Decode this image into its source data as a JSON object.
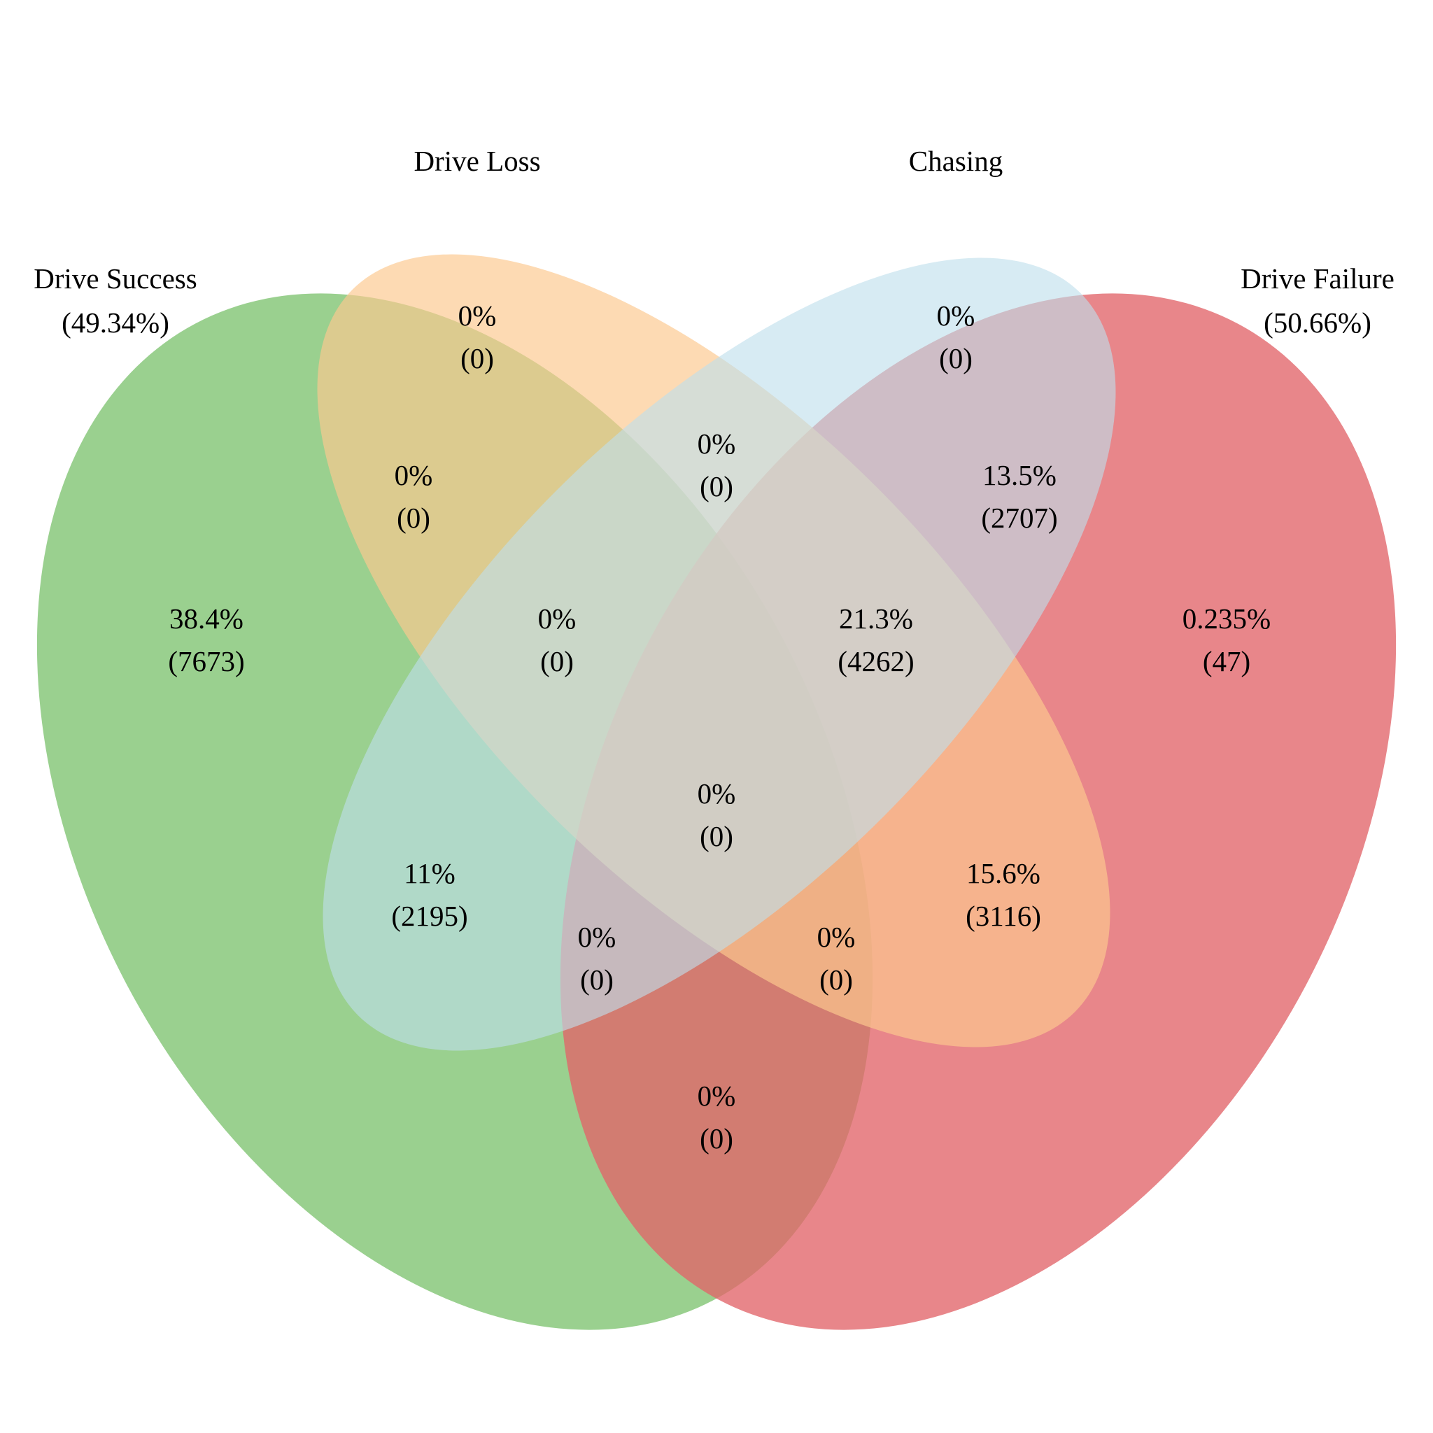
{
  "diagram": {
    "type": "venn-4",
    "sets": [
      {
        "id": "drive_success",
        "name": "Drive Success",
        "share": "(49.34%)",
        "color": "#7dc36f"
      },
      {
        "id": "drive_loss",
        "name": "Drive Loss",
        "share": "",
        "color": "#fcc88f"
      },
      {
        "id": "chasing",
        "name": "Chasing",
        "share": "",
        "color": "#bfdfeb"
      },
      {
        "id": "drive_failure",
        "name": "Drive Failure",
        "share": "(50.66%)",
        "color": "#e26469"
      }
    ],
    "regions": [
      {
        "id": "loss-only",
        "sets": [
          "drive_loss"
        ],
        "percent": "0%",
        "count": "(0)"
      },
      {
        "id": "chasing-only",
        "sets": [
          "chasing"
        ],
        "percent": "0%",
        "count": "(0)"
      },
      {
        "id": "loss-chasing",
        "sets": [
          "drive_loss",
          "chasing"
        ],
        "percent": "0%",
        "count": "(0)"
      },
      {
        "id": "success-loss",
        "sets": [
          "drive_success",
          "drive_loss"
        ],
        "percent": "0%",
        "count": "(0)"
      },
      {
        "id": "chasing-failure",
        "sets": [
          "chasing",
          "drive_failure"
        ],
        "percent": "13.5%",
        "count": "(2707)"
      },
      {
        "id": "success-only",
        "sets": [
          "drive_success"
        ],
        "percent": "38.4%",
        "count": "(7673)"
      },
      {
        "id": "success-loss-chasing",
        "sets": [
          "drive_success",
          "drive_loss",
          "chasing"
        ],
        "percent": "0%",
        "count": "(0)"
      },
      {
        "id": "loss-chasing-failure",
        "sets": [
          "drive_loss",
          "chasing",
          "drive_failure"
        ],
        "percent": "21.3%",
        "count": "(4262)"
      },
      {
        "id": "failure-only",
        "sets": [
          "drive_failure"
        ],
        "percent": "0.235%",
        "count": "(47)"
      },
      {
        "id": "all-four",
        "sets": [
          "drive_success",
          "drive_loss",
          "chasing",
          "drive_failure"
        ],
        "percent": "0%",
        "count": "(0)"
      },
      {
        "id": "success-chasing",
        "sets": [
          "drive_success",
          "chasing"
        ],
        "percent": "11%",
        "count": "(2195)"
      },
      {
        "id": "loss-failure",
        "sets": [
          "drive_loss",
          "drive_failure"
        ],
        "percent": "15.6%",
        "count": "(3116)"
      },
      {
        "id": "success-chasing-failure",
        "sets": [
          "drive_success",
          "chasing",
          "drive_failure"
        ],
        "percent": "0%",
        "count": "(0)"
      },
      {
        "id": "success-loss-failure",
        "sets": [
          "drive_success",
          "drive_loss",
          "drive_failure"
        ],
        "percent": "0%",
        "count": "(0)"
      },
      {
        "id": "success-failure",
        "sets": [
          "drive_success",
          "drive_failure"
        ],
        "percent": "0%",
        "count": "(0)"
      }
    ]
  }
}
